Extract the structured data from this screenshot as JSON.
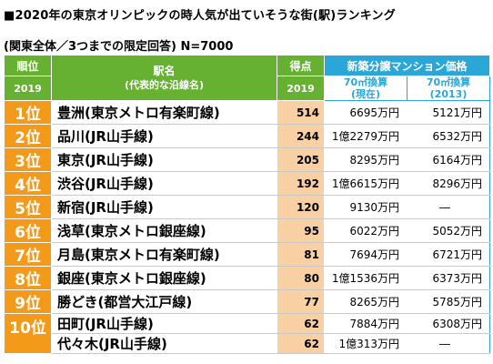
{
  "title": "■2020年の東京オリンピックの時人気が出ていそうな街(駅)ランキング",
  "subtitle": "(関東全体／3つまでの限定回答) N=7000",
  "header": {
    "rank": "順位",
    "rank_year": "2019",
    "station_name": "駅名",
    "station_sub": "(代表的な沿線名)",
    "score": "得点",
    "score_year": "2019",
    "price": "新築分譲マンション価格",
    "price_now_1": "70㎡換算",
    "price_now_2": "(現在)",
    "price_past_1": "70㎡換算",
    "price_past_2": "(2013)"
  },
  "rows": [
    {
      "rank": "1位",
      "station": "豊洲(東京メトロ有楽町線)",
      "score": "514",
      "now": "6695万円",
      "past": "5121万円"
    },
    {
      "rank": "2位",
      "station": "品川(JR山手線)",
      "score": "244",
      "now": "1億2279万円",
      "past": "6532万円"
    },
    {
      "rank": "3位",
      "station": "東京(JR山手線)",
      "score": "205",
      "now": "8295万円",
      "past": "6164万円"
    },
    {
      "rank": "4位",
      "station": "渋谷(JR山手線)",
      "score": "192",
      "now": "1億6615万円",
      "past": "8296万円"
    },
    {
      "rank": "5位",
      "station": "新宿(JR山手線)",
      "score": "120",
      "now": "9130万円",
      "past": "―"
    },
    {
      "rank": "6位",
      "station": "浅草(東京メトロ銀座線)",
      "score": "95",
      "now": "6022万円",
      "past": "5052万円"
    },
    {
      "rank": "7位",
      "station": "月島(東京メトロ有楽町線)",
      "score": "81",
      "now": "7694万円",
      "past": "6721万円"
    },
    {
      "rank": "8位",
      "station": "銀座(東京メトロ銀座線)",
      "score": "80",
      "now": "1億1536万円",
      "past": "6373万円"
    },
    {
      "rank": "9位",
      "station": "勝どき(都営大江戸線)",
      "score": "77",
      "now": "8265万円",
      "past": "5785万円"
    },
    {
      "rank": "10位",
      "station": "田町(JR山手線)",
      "score": "62",
      "now": "7884万円",
      "past": "6308万円"
    },
    {
      "rank": "",
      "station": "代々木(JR山手線)",
      "score": "62",
      "now": "1億313万円",
      "past": "―"
    }
  ]
}
